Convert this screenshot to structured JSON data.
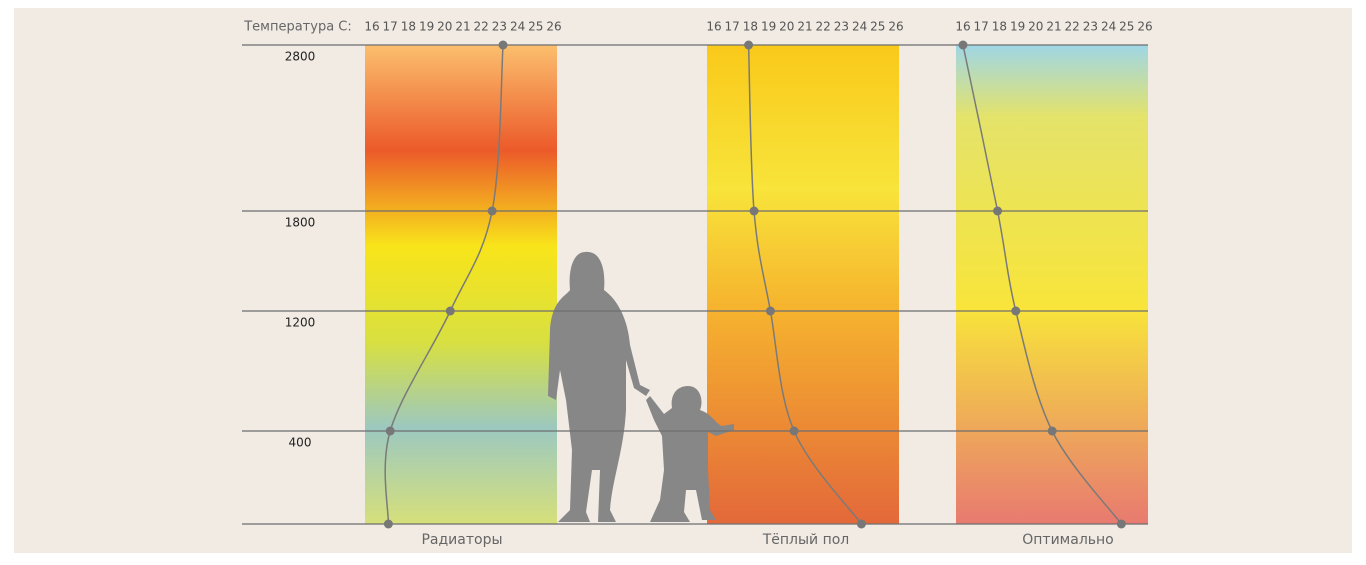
{
  "temperature_label": "Температура С:",
  "levels": [
    "2800",
    "1800",
    "1200",
    "400"
  ],
  "panels": [
    {
      "name": "Радиаторы",
      "ticks": [
        16,
        17,
        18,
        19,
        20,
        21,
        22,
        23,
        24,
        25,
        26
      ],
      "temperatures": [
        23.2,
        22.6,
        20.3,
        17.0,
        16.9
      ]
    },
    {
      "name": "Тёплый пол",
      "ticks": [
        16,
        17,
        18,
        19,
        20,
        21,
        22,
        23,
        24,
        25,
        26
      ],
      "temperatures": [
        17.9,
        18.2,
        19.1,
        20.4,
        24.1
      ]
    },
    {
      "name": "Оптимально",
      "ticks": [
        16,
        17,
        18,
        19,
        20,
        21,
        22,
        23,
        24,
        25,
        26
      ],
      "temperatures": [
        16.0,
        17.9,
        18.9,
        20.9,
        24.7
      ]
    }
  ]
}
